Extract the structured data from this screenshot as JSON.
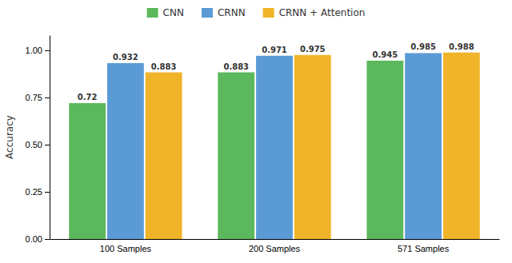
{
  "chart_data": {
    "type": "bar",
    "ylabel": "Accuracy",
    "categories": [
      "100 Samples",
      "200 Samples",
      "571 Samples"
    ],
    "series": [
      {
        "name": "CNN",
        "color": "#5CB85C",
        "values": [
          0.72,
          0.883,
          0.945
        ]
      },
      {
        "name": "CRNN",
        "color": "#5B9BD5",
        "values": [
          0.932,
          0.971,
          0.985
        ]
      },
      {
        "name": "CRNN + Attention",
        "color": "#F0B429",
        "values": [
          0.883,
          0.975,
          0.988
        ]
      }
    ],
    "ylim": [
      0.0,
      1.08
    ],
    "yticks": [
      {
        "value": 0.0,
        "label": "0.00"
      },
      0.25,
      {
        "value": 0.5,
        "label": "0.50"
      },
      0.75,
      {
        "value": 1.0,
        "label": "1.00"
      }
    ],
    "data_labels": true,
    "legend": "top",
    "grid": false
  }
}
